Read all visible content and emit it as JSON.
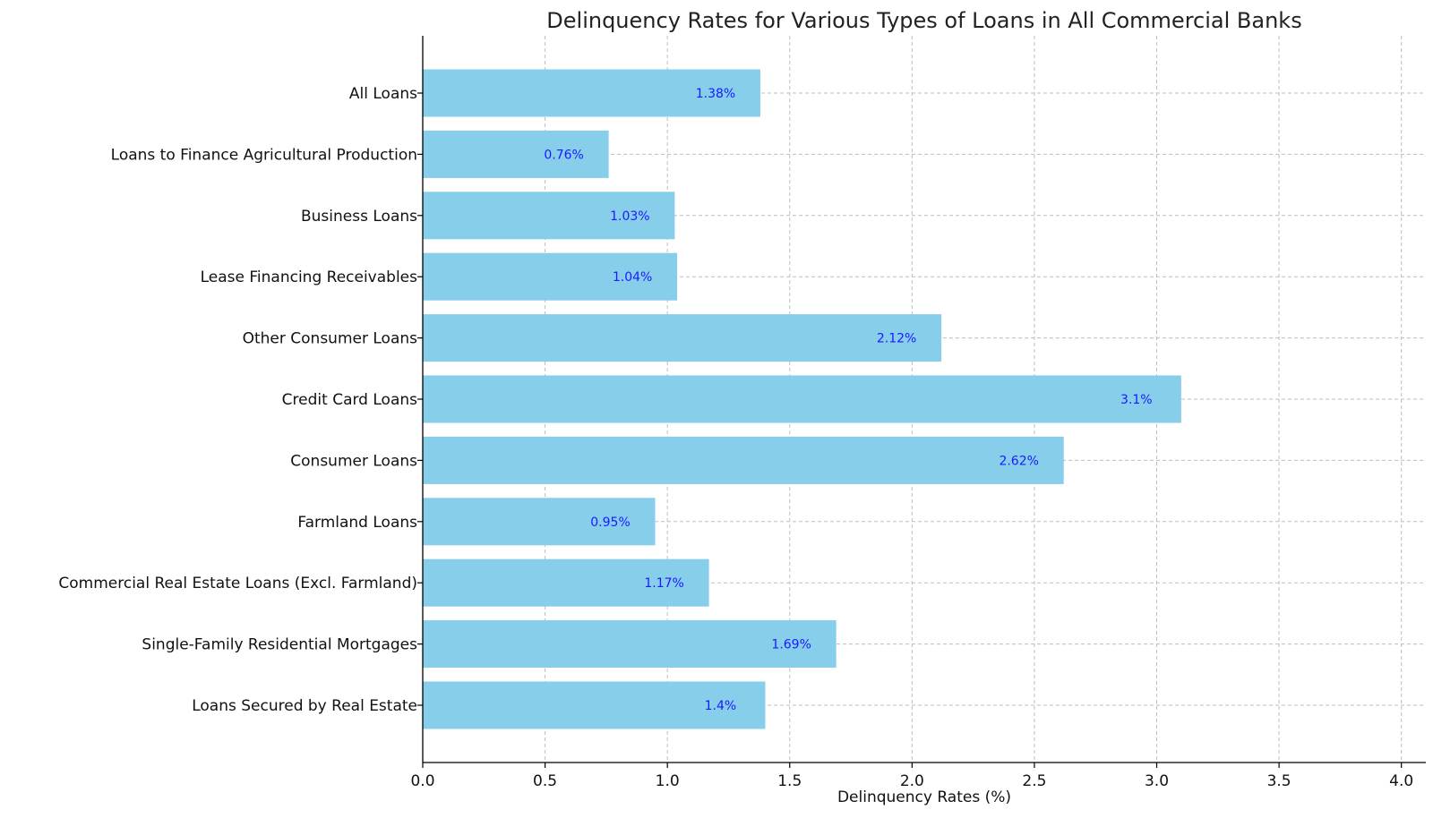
{
  "chart_data": {
    "type": "bar",
    "orientation": "horizontal",
    "title": "Delinquency Rates for Various Types of Loans in All Commercial Banks",
    "xlabel": "Delinquency Rates (%)",
    "ylabel": "",
    "xlim": [
      0,
      4.1
    ],
    "xticks": [
      "0.0",
      "0.5",
      "1.0",
      "1.5",
      "2.0",
      "2.5",
      "3.0",
      "3.5",
      "4.0"
    ],
    "categories": [
      "Loans Secured by Real Estate",
      "Single-Family Residential Mortgages",
      "Commercial Real Estate Loans (Excl. Farmland)",
      "Farmland Loans",
      "Consumer Loans",
      "Credit Card Loans",
      "Other Consumer Loans",
      "Lease Financing Receivables",
      "Business Loans",
      "Loans to Finance Agricultural Production",
      "All Loans"
    ],
    "values": [
      1.4,
      1.69,
      1.17,
      0.95,
      2.62,
      3.1,
      2.12,
      1.04,
      1.03,
      0.76,
      1.38
    ],
    "value_labels": [
      "1.4%",
      "1.69%",
      "1.17%",
      "0.95%",
      "2.62%",
      "3.1%",
      "2.12%",
      "1.04%",
      "1.03%",
      "0.76%",
      "1.38%"
    ],
    "bar_color": "#87ceeb",
    "label_color": "#1a1aff",
    "grid": true
  }
}
